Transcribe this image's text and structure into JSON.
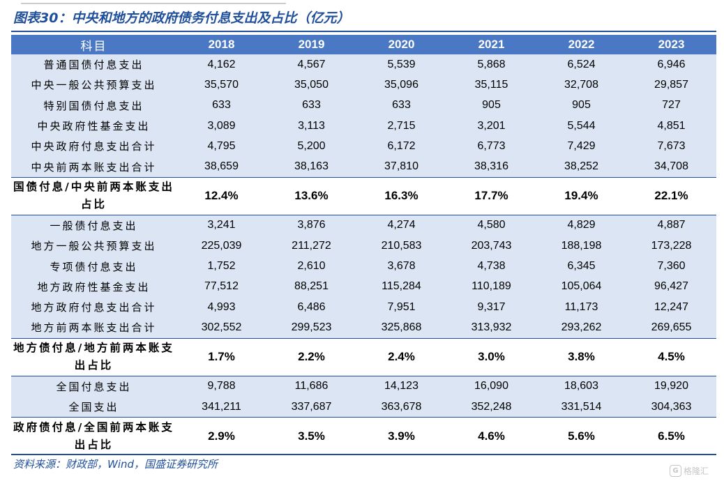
{
  "title": "图表30：中央和地方的政府债务付息支出及占比（亿元）",
  "table": {
    "header_label": "科目",
    "years": [
      "2018",
      "2019",
      "2020",
      "2021",
      "2022",
      "2023"
    ],
    "rows": [
      {
        "label": "普通国债付息支出",
        "values": [
          "4,162",
          "4,567",
          "5,539",
          "5,868",
          "6,524",
          "6,946"
        ],
        "shade": true,
        "bold": false
      },
      {
        "label": "中央一般公共预算支出",
        "values": [
          "35,570",
          "35,050",
          "35,096",
          "35,115",
          "32,708",
          "29,857"
        ],
        "shade": true,
        "bold": false
      },
      {
        "label": "特别国债付息支出",
        "values": [
          "633",
          "633",
          "633",
          "905",
          "905",
          "727"
        ],
        "shade": true,
        "bold": false
      },
      {
        "label": "中央政府性基金支出",
        "values": [
          "3,089",
          "3,113",
          "2,715",
          "3,201",
          "5,544",
          "4,851"
        ],
        "shade": true,
        "bold": false
      },
      {
        "label": "中央政府付息支出合计",
        "values": [
          "4,795",
          "5,200",
          "6,172",
          "6,773",
          "7,429",
          "7,673"
        ],
        "shade": true,
        "bold": false
      },
      {
        "label": "中央前两本账支出合计",
        "values": [
          "38,659",
          "38,163",
          "37,810",
          "38,316",
          "38,252",
          "34,708"
        ],
        "shade": true,
        "bold": false
      },
      {
        "label": "国债付息/中央前两本账支出占比",
        "values": [
          "12.4%",
          "13.6%",
          "16.3%",
          "17.7%",
          "19.4%",
          "22.1%"
        ],
        "shade": false,
        "bold": true
      },
      {
        "label": "一般债付息支出",
        "values": [
          "3,241",
          "3,876",
          "4,274",
          "4,580",
          "4,829",
          "4,887"
        ],
        "shade": true,
        "bold": false
      },
      {
        "label": "地方一般公共预算支出",
        "values": [
          "225,039",
          "211,272",
          "210,583",
          "203,743",
          "188,198",
          "173,228"
        ],
        "shade": true,
        "bold": false
      },
      {
        "label": "专项债付息支出",
        "values": [
          "1,752",
          "2,610",
          "3,678",
          "4,738",
          "6,345",
          "7,360"
        ],
        "shade": true,
        "bold": false
      },
      {
        "label": "地方政府性基金支出",
        "values": [
          "77,512",
          "88,251",
          "115,284",
          "110,189",
          "105,064",
          "96,427"
        ],
        "shade": true,
        "bold": false
      },
      {
        "label": "地方政府付息支出合计",
        "values": [
          "4,993",
          "6,486",
          "7,951",
          "9,317",
          "11,173",
          "12,247"
        ],
        "shade": true,
        "bold": false
      },
      {
        "label": "地方前两本账支出合计",
        "values": [
          "302,552",
          "299,523",
          "325,868",
          "313,932",
          "293,262",
          "269,655"
        ],
        "shade": true,
        "bold": false
      },
      {
        "label": "地方债付息/地方前两本账支出占比",
        "values": [
          "1.7%",
          "2.2%",
          "2.4%",
          "3.0%",
          "3.8%",
          "4.5%"
        ],
        "shade": false,
        "bold": true
      },
      {
        "label": "全国付息支出",
        "values": [
          "9,788",
          "11,686",
          "14,123",
          "16,090",
          "18,603",
          "19,920"
        ],
        "shade": true,
        "bold": false
      },
      {
        "label": "全国支出",
        "values": [
          "341,211",
          "337,687",
          "363,678",
          "352,248",
          "331,514",
          "304,363"
        ],
        "shade": true,
        "bold": false
      },
      {
        "label": "政府债付息/全国前两本账支出占比",
        "values": [
          "2.9%",
          "3.5%",
          "3.9%",
          "4.6%",
          "5.6%",
          "6.5%"
        ],
        "shade": false,
        "bold": true
      }
    ]
  },
  "source": "资料来源：财政部，Wind，国盛证券研究所",
  "watermark": {
    "icon": "gelonghui-logo-icon",
    "text": "格隆汇"
  },
  "colors": {
    "accent": "#1f4e9a",
    "header_bg": "#4a78c5",
    "row_shade": "#dbe5f3"
  }
}
